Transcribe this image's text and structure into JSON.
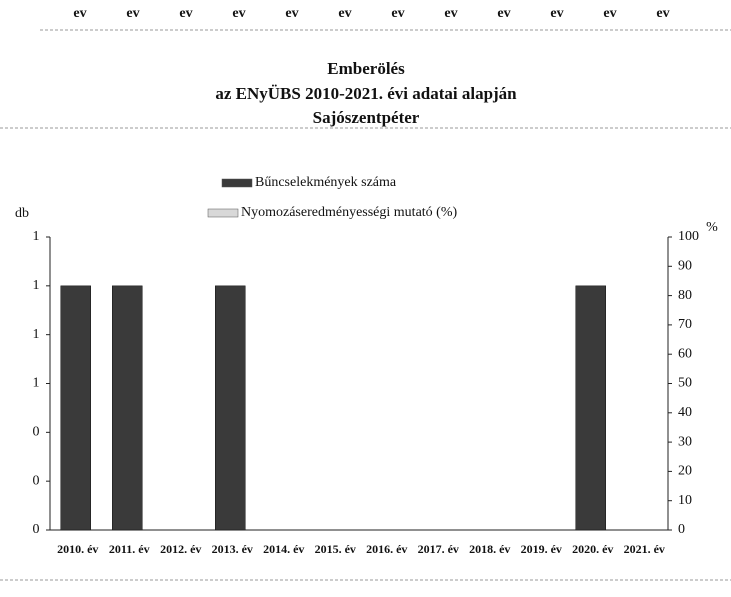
{
  "top_labels": [
    "ev",
    "ev",
    "ev",
    "ev",
    "ev",
    "ev",
    "ev",
    "ev",
    "ev",
    "ev",
    "ev",
    "ev"
  ],
  "chart_data": {
    "type": "bar",
    "title": [
      "Emberölés",
      "az ENyÜBS 2010-2021. évi adatai alapján",
      "Sajószentpéter"
    ],
    "y_label": "db",
    "y2_label": "%",
    "categories": [
      "2010. év",
      "2011. év",
      "2012. év",
      "2013. év",
      "2014. év",
      "2015. év",
      "2016. év",
      "2017. év",
      "2018. év",
      "2019. év",
      "2020. év",
      "2021. év"
    ],
    "series": [
      {
        "name": "Bűncselekmények száma",
        "color": "#3a3a3a",
        "values": [
          1,
          1,
          0,
          1,
          0,
          0,
          0,
          0,
          0,
          0,
          1,
          0
        ]
      },
      {
        "name": "Nyomozáseredményességi mutató (%)",
        "color": "#d8d8d8",
        "axis": "y2",
        "values": [
          null,
          null,
          null,
          null,
          null,
          null,
          null,
          null,
          null,
          null,
          null,
          null
        ]
      }
    ],
    "ylim": [
      0,
      1.2
    ],
    "yticks": [
      0,
      {
        "value": 0.2,
        "label": "0"
      },
      {
        "value": 0.4,
        "label": "0"
      },
      {
        "value": 0.6,
        "label": "1"
      },
      {
        "value": 0.8,
        "label": "1"
      },
      1,
      {
        "value": 1.2,
        "label": "1"
      }
    ],
    "y2lim": [
      0,
      100
    ],
    "y2ticks": [
      0,
      10,
      20,
      30,
      40,
      50,
      60,
      70,
      80,
      90,
      100
    ],
    "legend": "top"
  }
}
